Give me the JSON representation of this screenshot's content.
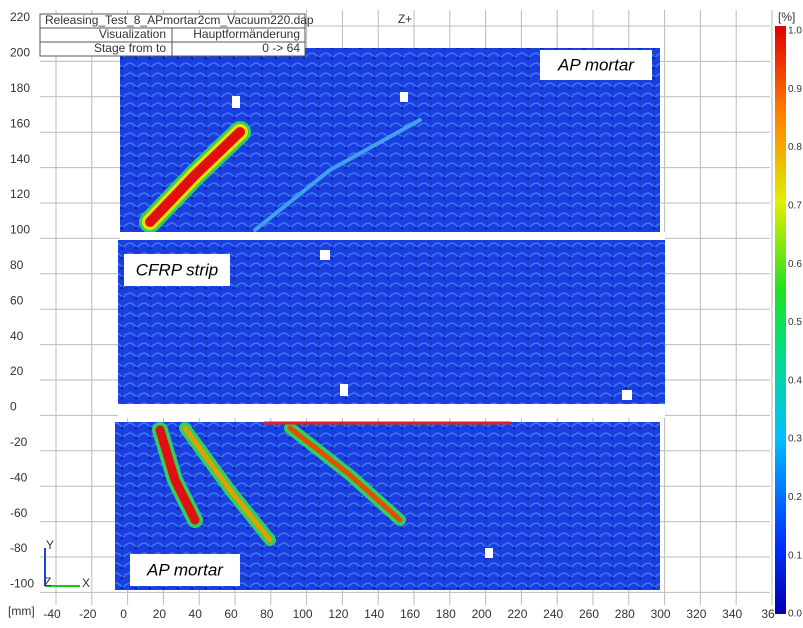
{
  "info_table": {
    "file": "Releasing_Test_8_APmortar2cm_Vacuum220.dap",
    "rows": [
      [
        "Visualization",
        "Hauptformänderung"
      ],
      [
        "Stage from to",
        "0 -> 64"
      ]
    ]
  },
  "view_label": "Z+",
  "y_ticks": [
    "220",
    "200",
    "180",
    "160",
    "140",
    "120",
    "100",
    "80",
    "60",
    "40",
    "20",
    "0",
    "-20",
    "-40",
    "-60",
    "-80",
    "-100"
  ],
  "x_ticks": [
    "-40",
    "-20",
    "0",
    "20",
    "40",
    "60",
    "80",
    "100",
    "120",
    "140",
    "160",
    "180",
    "200",
    "220",
    "240",
    "260",
    "280",
    "300",
    "320",
    "340",
    "36"
  ],
  "unit": "[mm]",
  "triad": {
    "y": "Y",
    "z": "Z",
    "x": "X"
  },
  "colorbar": {
    "unit": "[%]",
    "ticks": [
      "1.0",
      "0.9",
      "0.8",
      "0.7",
      "0.6",
      "0.5",
      "0.4",
      "0.3",
      "0.2",
      "0.1",
      "0.0"
    ]
  },
  "annotations": [
    "AP mortar",
    "CFRP strip",
    "AP mortar"
  ]
}
